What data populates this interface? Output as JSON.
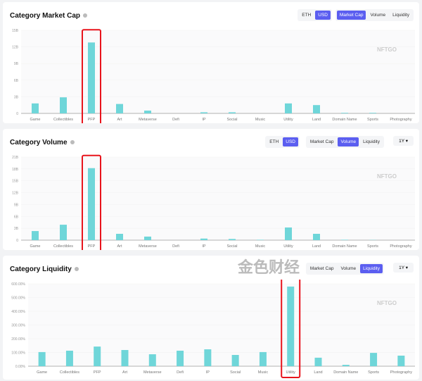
{
  "categories": [
    "Game",
    "Collectibles",
    "PFP",
    "Art",
    "Metaverse",
    "Defi",
    "IP",
    "Social",
    "Music",
    "Utility",
    "Land",
    "Domain Name",
    "Sports",
    "Photography"
  ],
  "watermark": "NFTGO",
  "corner_watermark": "金色财经",
  "toggles": {
    "eth": "ETH",
    "usd": "USD",
    "market_cap": "Market Cap",
    "volume": "Volume",
    "liquidity": "Liquidity",
    "period": "1Y"
  },
  "bar_color": "#6fd6d9",
  "accent": "#5b5ef0",
  "chart_data": [
    {
      "type": "bar",
      "title": "Category Market Cap",
      "yticks": [
        "0",
        "3B",
        "6B",
        "9B",
        "12B",
        "15B"
      ],
      "ylim": [
        0,
        15
      ],
      "values": [
        1.8,
        2.9,
        12.8,
        1.7,
        0.5,
        0,
        0.2,
        0.2,
        0,
        1.8,
        1.5,
        0.1,
        0.1,
        0
      ],
      "highlight": "PFP"
    },
    {
      "type": "bar",
      "title": "Category Volume",
      "yticks": [
        "0",
        "3B",
        "6B",
        "9B",
        "12B",
        "15B",
        "18B",
        "21B"
      ],
      "ylim": [
        0,
        21
      ],
      "values": [
        2.3,
        3.9,
        18.2,
        1.6,
        0.9,
        0,
        0.4,
        0.3,
        0.1,
        3.2,
        1.6,
        0.1,
        0.05,
        0
      ],
      "highlight": "PFP"
    },
    {
      "type": "bar",
      "title": "Category Liquidity",
      "yticks": [
        "0.00%",
        "100.00%",
        "200.00%",
        "300.00%",
        "400.00%",
        "500.00%",
        "600.00%"
      ],
      "ylim": [
        0,
        600
      ],
      "values": [
        103,
        113,
        143,
        118,
        87,
        113,
        123,
        82,
        103,
        580,
        62,
        10,
        97,
        77
      ],
      "highlight": "Utility"
    }
  ]
}
